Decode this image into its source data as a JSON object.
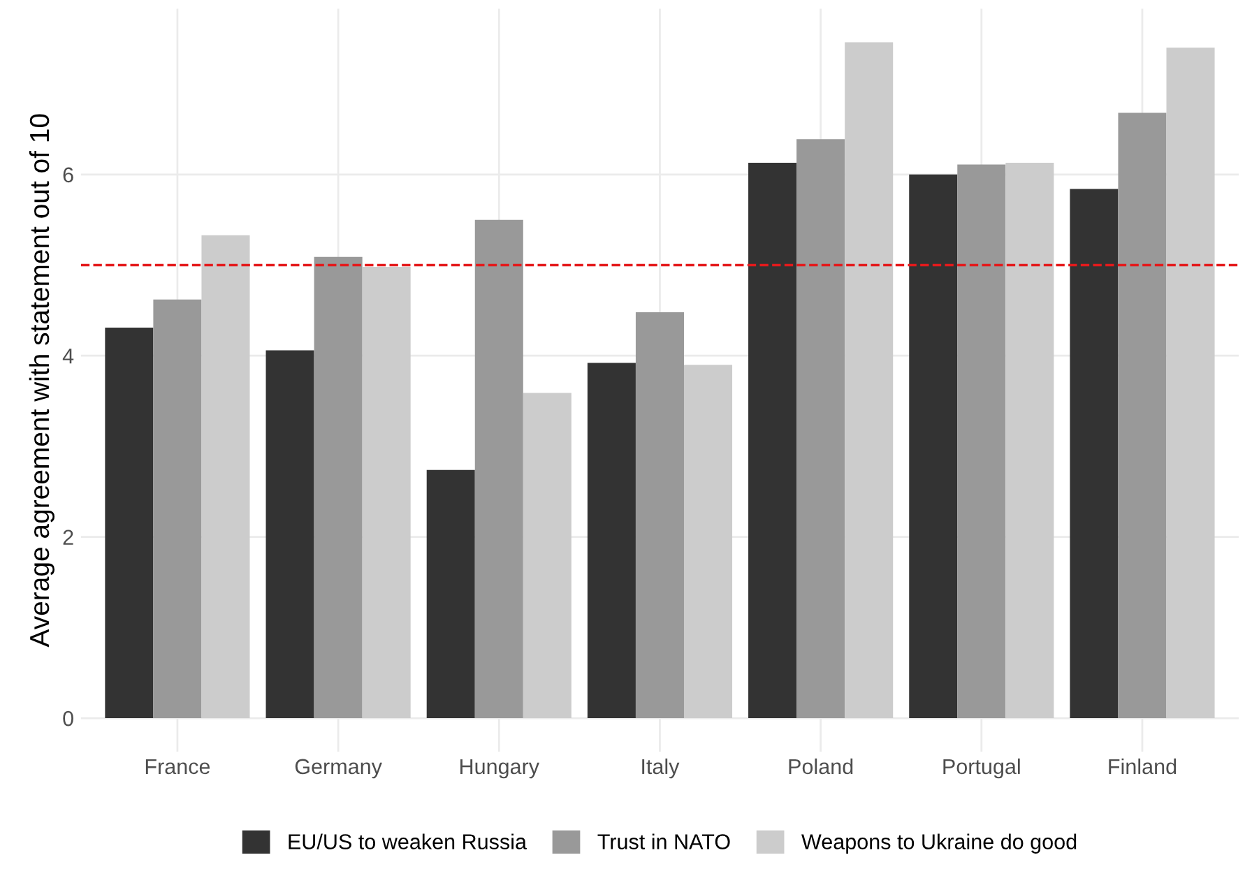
{
  "chart_data": {
    "type": "bar",
    "ylabel": "Average agreement with statement out of 10",
    "categories": [
      "France",
      "Germany",
      "Hungary",
      "Italy",
      "Poland",
      "Portugal",
      "Finland"
    ],
    "series": [
      {
        "name": "EU/US to weaken Russia",
        "color": "#333333",
        "values": [
          4.31,
          4.06,
          2.74,
          3.92,
          6.13,
          6.0,
          5.84
        ]
      },
      {
        "name": "Trust in NATO",
        "color": "#999999",
        "values": [
          4.62,
          5.09,
          5.5,
          4.48,
          6.39,
          6.11,
          6.68
        ]
      },
      {
        "name": "Weapons to Ukraine do good",
        "color": "#cccccc",
        "values": [
          5.33,
          4.98,
          3.59,
          3.9,
          7.46,
          6.13,
          7.4
        ]
      }
    ],
    "ylim": [
      -0.37,
      7.83
    ],
    "yticks": [
      0,
      2,
      4,
      6
    ],
    "grid": true,
    "legend": "bottom",
    "ref_lines": [
      {
        "axis": "y",
        "value": 5,
        "color": "#e41a1c",
        "line_style": "dashed"
      }
    ]
  }
}
